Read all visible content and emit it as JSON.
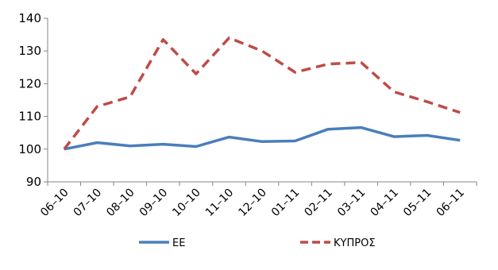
{
  "chart_data": {
    "type": "line",
    "categories": [
      "06–10",
      "07–10",
      "08–10",
      "09–10",
      "10–10",
      "11–10",
      "12–10",
      "01–11",
      "02–11",
      "03–11",
      "04–11",
      "05–11",
      "06–11"
    ],
    "series": [
      {
        "name": "ΕΕ",
        "values": [
          100,
          102,
          101,
          101.5,
          100.8,
          103.7,
          102.3,
          102.5,
          106.1,
          106.6,
          103.8,
          104.2,
          102.7
        ],
        "color": "#4a7ebb",
        "style": "solid"
      },
      {
        "name": "ΚΥΠΡΟΣ",
        "values": [
          100,
          113,
          116,
          133.5,
          123,
          134,
          130,
          123.5,
          126,
          126.5,
          117.5,
          114.5,
          111.2
        ],
        "color": "#be4b48",
        "style": "dashed"
      }
    ],
    "y_ticks": [
      90,
      100,
      110,
      120,
      130,
      140
    ],
    "ylim": [
      90,
      140
    ],
    "legend_position": "bottom",
    "grid": false
  }
}
